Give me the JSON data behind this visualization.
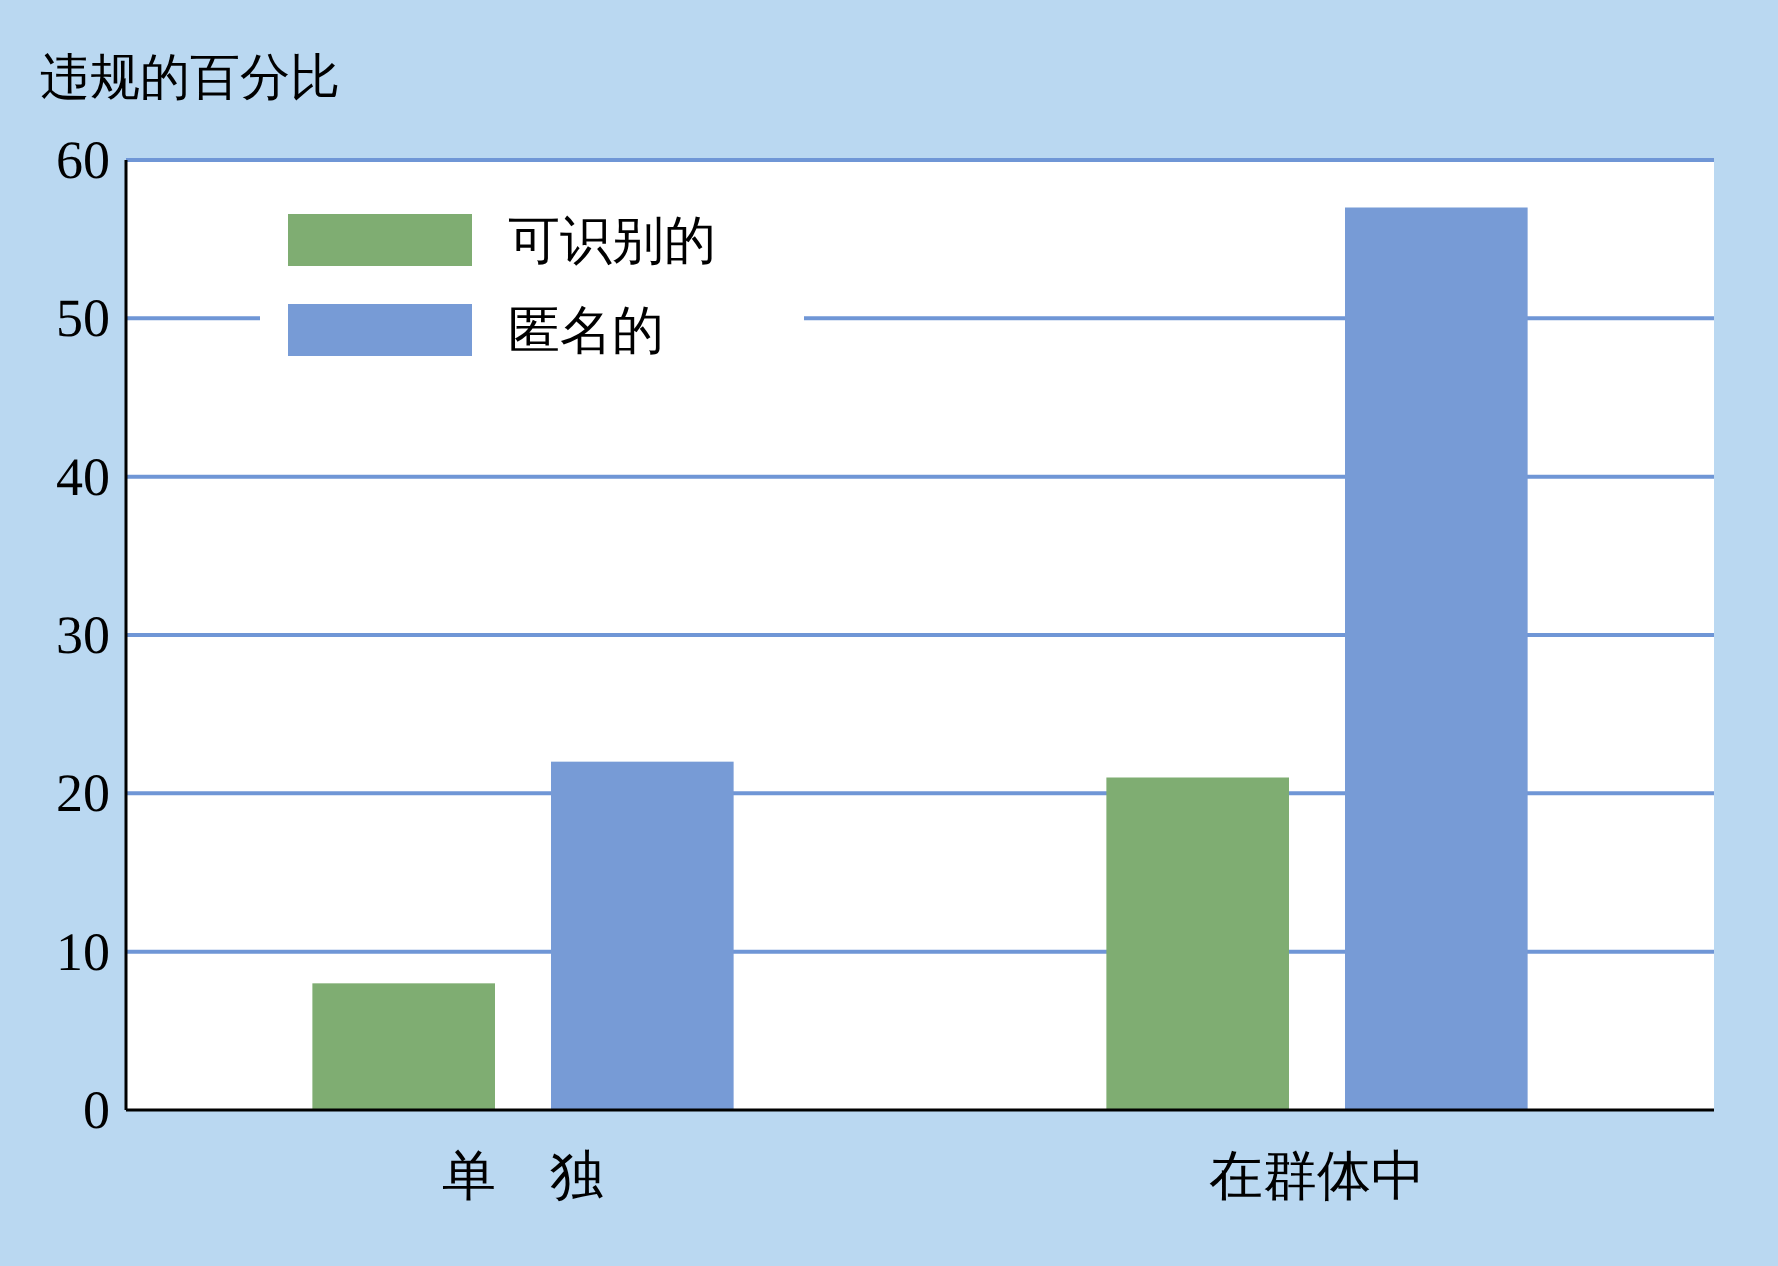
{
  "chart_data": {
    "type": "bar",
    "ylabel": "违规的百分比",
    "categories": [
      "单　独",
      "在群体中"
    ],
    "series": [
      {
        "name": "可识别的",
        "color": "#7fad72",
        "values": [
          8,
          21
        ]
      },
      {
        "name": "匿名的",
        "color": "#779bd6",
        "values": [
          22,
          57
        ]
      }
    ],
    "ylim": [
      0,
      60
    ],
    "yticks": [
      0,
      10,
      20,
      30,
      40,
      50,
      60
    ],
    "grid": "y",
    "legend": "top left"
  }
}
